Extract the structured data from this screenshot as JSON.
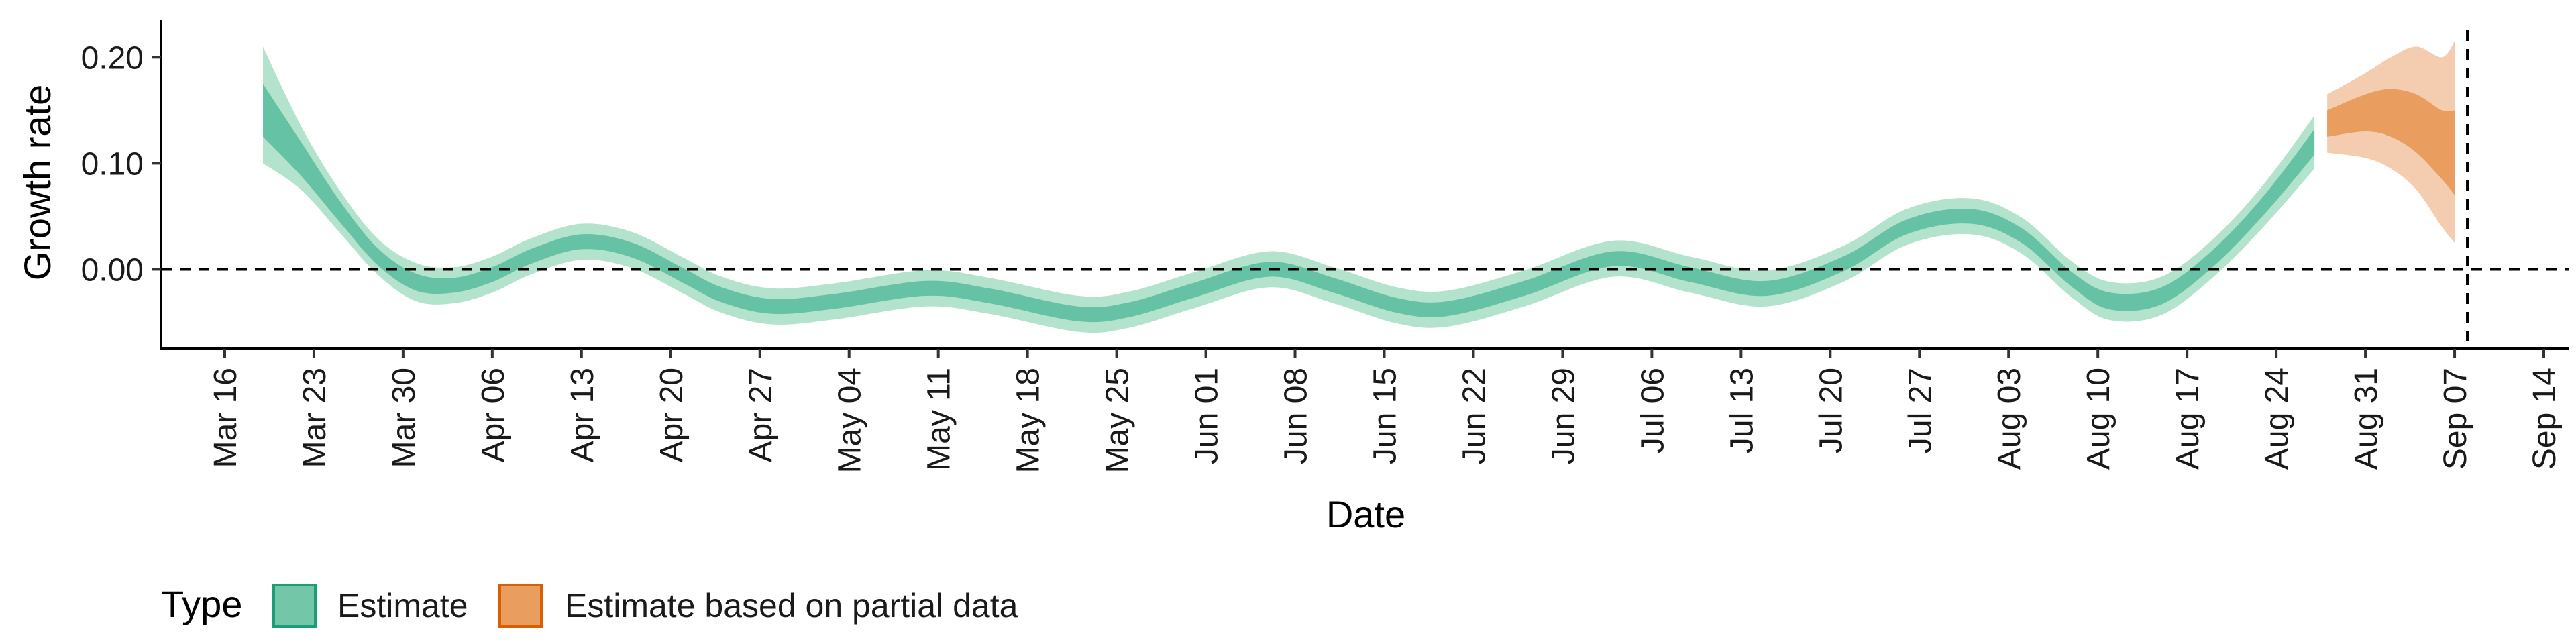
{
  "chart_data": {
    "type": "area",
    "title": "",
    "xlabel": "Date",
    "ylabel": "Growth rate",
    "ylim": [
      -0.075,
      0.235
    ],
    "yticks": [
      {
        "value": 0.2,
        "label": "0.20"
      },
      {
        "value": 0.1,
        "label": "0.10"
      },
      {
        "value": 0.0,
        "label": "0.00"
      }
    ],
    "xticks": [
      {
        "date": "2020-03-16",
        "label": "Mar 16"
      },
      {
        "date": "2020-03-23",
        "label": "Mar 23"
      },
      {
        "date": "2020-03-30",
        "label": "Mar 30"
      },
      {
        "date": "2020-04-06",
        "label": "Apr 06"
      },
      {
        "date": "2020-04-13",
        "label": "Apr 13"
      },
      {
        "date": "2020-04-20",
        "label": "Apr 20"
      },
      {
        "date": "2020-04-27",
        "label": "Apr 27"
      },
      {
        "date": "2020-05-04",
        "label": "May 04"
      },
      {
        "date": "2020-05-11",
        "label": "May 11"
      },
      {
        "date": "2020-05-18",
        "label": "May 18"
      },
      {
        "date": "2020-05-25",
        "label": "May 25"
      },
      {
        "date": "2020-06-01",
        "label": "Jun 01"
      },
      {
        "date": "2020-06-08",
        "label": "Jun 08"
      },
      {
        "date": "2020-06-15",
        "label": "Jun 15"
      },
      {
        "date": "2020-06-22",
        "label": "Jun 22"
      },
      {
        "date": "2020-06-29",
        "label": "Jun 29"
      },
      {
        "date": "2020-07-06",
        "label": "Jul 06"
      },
      {
        "date": "2020-07-13",
        "label": "Jul 13"
      },
      {
        "date": "2020-07-20",
        "label": "Jul 20"
      },
      {
        "date": "2020-07-27",
        "label": "Jul 27"
      },
      {
        "date": "2020-08-03",
        "label": "Aug 03"
      },
      {
        "date": "2020-08-10",
        "label": "Aug 10"
      },
      {
        "date": "2020-08-17",
        "label": "Aug 17"
      },
      {
        "date": "2020-08-24",
        "label": "Aug 24"
      },
      {
        "date": "2020-08-31",
        "label": "Aug 31"
      },
      {
        "date": "2020-09-07",
        "label": "Sep 07"
      },
      {
        "date": "2020-09-14",
        "label": "Sep 14"
      }
    ],
    "xlim": [
      "2020-03-11",
      "2020-09-16"
    ],
    "reference_lines": {
      "hline_y": 0,
      "vline_date": "2020-09-08",
      "style": "dashed"
    },
    "grid": false,
    "legend": {
      "title": "Type",
      "placement": "bottom-left",
      "entries": [
        {
          "label": "Estimate",
          "fill": "#73c6a8",
          "border": "#1b9e77"
        },
        {
          "label": "Estimate based on partial data",
          "fill": "#e99d5e",
          "border": "#d95f02"
        }
      ]
    },
    "series": [
      {
        "name": "Estimate",
        "colors": {
          "inner": "#66c2a5",
          "outer": "#b3e2cd",
          "median": "#56b896"
        },
        "points": [
          {
            "date": "2020-03-19",
            "median": 0.155,
            "lo50": 0.125,
            "hi50": 0.175,
            "lo90": 0.1,
            "hi90": 0.21
          },
          {
            "date": "2020-03-22",
            "median": 0.105,
            "lo50": 0.088,
            "hi50": 0.12,
            "lo90": 0.075,
            "hi90": 0.135
          },
          {
            "date": "2020-03-25",
            "median": 0.055,
            "lo50": 0.045,
            "hi50": 0.065,
            "lo90": 0.035,
            "hi90": 0.075
          },
          {
            "date": "2020-03-28",
            "median": 0.012,
            "lo50": 0.004,
            "hi50": 0.02,
            "lo90": -0.005,
            "hi90": 0.029
          },
          {
            "date": "2020-03-31",
            "median": -0.012,
            "lo50": -0.02,
            "hi50": -0.004,
            "lo90": -0.03,
            "hi90": 0.006
          },
          {
            "date": "2020-04-03",
            "median": -0.015,
            "lo50": -0.022,
            "hi50": -0.008,
            "lo90": -0.032,
            "hi90": 0.002
          },
          {
            "date": "2020-04-06",
            "median": -0.005,
            "lo50": -0.012,
            "hi50": 0.002,
            "lo90": -0.022,
            "hi90": 0.012
          },
          {
            "date": "2020-04-09",
            "median": 0.012,
            "lo50": 0.005,
            "hi50": 0.019,
            "lo90": -0.005,
            "hi90": 0.029
          },
          {
            "date": "2020-04-13",
            "median": 0.026,
            "lo50": 0.019,
            "hi50": 0.033,
            "lo90": 0.009,
            "hi90": 0.043
          },
          {
            "date": "2020-04-17",
            "median": 0.018,
            "lo50": 0.011,
            "hi50": 0.025,
            "lo90": 0.001,
            "hi90": 0.035
          },
          {
            "date": "2020-04-21",
            "median": -0.006,
            "lo50": -0.013,
            "hi50": 0.001,
            "lo90": -0.023,
            "hi90": 0.011
          },
          {
            "date": "2020-04-24",
            "median": -0.024,
            "lo50": -0.031,
            "hi50": -0.017,
            "lo90": -0.041,
            "hi90": -0.007
          },
          {
            "date": "2020-04-28",
            "median": -0.035,
            "lo50": -0.042,
            "hi50": -0.028,
            "lo90": -0.052,
            "hi90": -0.018
          },
          {
            "date": "2020-05-03",
            "median": -0.03,
            "lo50": -0.037,
            "hi50": -0.023,
            "lo90": -0.047,
            "hi90": -0.013
          },
          {
            "date": "2020-05-10",
            "median": -0.018,
            "lo50": -0.025,
            "hi50": -0.011,
            "lo90": -0.035,
            "hi90": -0.001
          },
          {
            "date": "2020-05-15",
            "median": -0.025,
            "lo50": -0.032,
            "hi50": -0.018,
            "lo90": -0.042,
            "hi90": -0.008
          },
          {
            "date": "2020-05-22",
            "median": -0.042,
            "lo50": -0.049,
            "hi50": -0.035,
            "lo90": -0.059,
            "hi90": -0.025
          },
          {
            "date": "2020-05-26",
            "median": -0.038,
            "lo50": -0.045,
            "hi50": -0.031,
            "lo90": -0.055,
            "hi90": -0.021
          },
          {
            "date": "2020-05-31",
            "median": -0.02,
            "lo50": -0.027,
            "hi50": -0.013,
            "lo90": -0.037,
            "hi90": -0.003
          },
          {
            "date": "2020-06-06",
            "median": 0.0,
            "lo50": -0.007,
            "hi50": 0.007,
            "lo90": -0.017,
            "hi90": 0.017
          },
          {
            "date": "2020-06-11",
            "median": -0.015,
            "lo50": -0.022,
            "hi50": -0.008,
            "lo90": -0.032,
            "hi90": 0.002
          },
          {
            "date": "2020-06-16",
            "median": -0.034,
            "lo50": -0.041,
            "hi50": -0.027,
            "lo90": -0.051,
            "hi90": -0.017
          },
          {
            "date": "2020-06-20",
            "median": -0.037,
            "lo50": -0.044,
            "hi50": -0.03,
            "lo90": -0.054,
            "hi90": -0.02
          },
          {
            "date": "2020-06-26",
            "median": -0.018,
            "lo50": -0.025,
            "hi50": -0.011,
            "lo90": -0.035,
            "hi90": -0.001
          },
          {
            "date": "2020-07-03",
            "median": 0.01,
            "lo50": 0.003,
            "hi50": 0.017,
            "lo90": -0.007,
            "hi90": 0.027
          },
          {
            "date": "2020-07-09",
            "median": -0.005,
            "lo50": -0.012,
            "hi50": 0.002,
            "lo90": -0.022,
            "hi90": 0.012
          },
          {
            "date": "2020-07-15",
            "median": -0.018,
            "lo50": -0.025,
            "hi50": -0.011,
            "lo90": -0.035,
            "hi90": -0.001
          },
          {
            "date": "2020-07-21",
            "median": 0.005,
            "lo50": -0.002,
            "hi50": 0.012,
            "lo90": -0.012,
            "hi90": 0.022
          },
          {
            "date": "2020-07-26",
            "median": 0.04,
            "lo50": 0.033,
            "hi50": 0.047,
            "lo90": 0.023,
            "hi90": 0.057
          },
          {
            "date": "2020-07-31",
            "median": 0.05,
            "lo50": 0.043,
            "hi50": 0.057,
            "lo90": 0.033,
            "hi90": 0.067
          },
          {
            "date": "2020-08-04",
            "median": 0.032,
            "lo50": 0.025,
            "hi50": 0.039,
            "lo90": 0.015,
            "hi90": 0.049
          },
          {
            "date": "2020-08-08",
            "median": -0.01,
            "lo50": -0.017,
            "hi50": -0.003,
            "lo90": -0.027,
            "hi90": 0.007
          },
          {
            "date": "2020-08-11",
            "median": -0.03,
            "lo50": -0.038,
            "hi50": -0.022,
            "lo90": -0.048,
            "hi90": -0.012
          },
          {
            "date": "2020-08-15",
            "median": -0.025,
            "lo50": -0.033,
            "hi50": -0.017,
            "lo90": -0.043,
            "hi90": -0.007
          },
          {
            "date": "2020-08-19",
            "median": 0.01,
            "lo50": 0.002,
            "hi50": 0.018,
            "lo90": -0.008,
            "hi90": 0.028
          },
          {
            "date": "2020-08-23",
            "median": 0.06,
            "lo50": 0.051,
            "hi50": 0.069,
            "lo90": 0.04,
            "hi90": 0.08
          },
          {
            "date": "2020-08-27",
            "median": 0.12,
            "lo50": 0.108,
            "hi50": 0.132,
            "lo90": 0.095,
            "hi90": 0.145
          }
        ]
      },
      {
        "name": "Estimate based on partial data",
        "colors": {
          "inner": "#e99d5e",
          "outer": "#f4cdb1",
          "median": "#e08a48"
        },
        "points": [
          {
            "date": "2020-08-28",
            "median": 0.14,
            "lo50": 0.125,
            "hi50": 0.15,
            "lo90": 0.11,
            "hi90": 0.165
          },
          {
            "date": "2020-08-31",
            "median": 0.15,
            "lo50": 0.13,
            "hi50": 0.165,
            "lo90": 0.105,
            "hi90": 0.185
          },
          {
            "date": "2020-09-02",
            "median": 0.148,
            "lo50": 0.125,
            "hi50": 0.17,
            "lo90": 0.095,
            "hi90": 0.2
          },
          {
            "date": "2020-09-04",
            "median": 0.14,
            "lo50": 0.11,
            "hi50": 0.165,
            "lo90": 0.075,
            "hi90": 0.21
          },
          {
            "date": "2020-09-06",
            "median": 0.12,
            "lo50": 0.085,
            "hi50": 0.15,
            "lo90": 0.04,
            "hi90": 0.2
          },
          {
            "date": "2020-09-07",
            "median": 0.115,
            "lo50": 0.07,
            "hi50": 0.15,
            "lo90": 0.025,
            "hi90": 0.215
          }
        ]
      }
    ]
  }
}
